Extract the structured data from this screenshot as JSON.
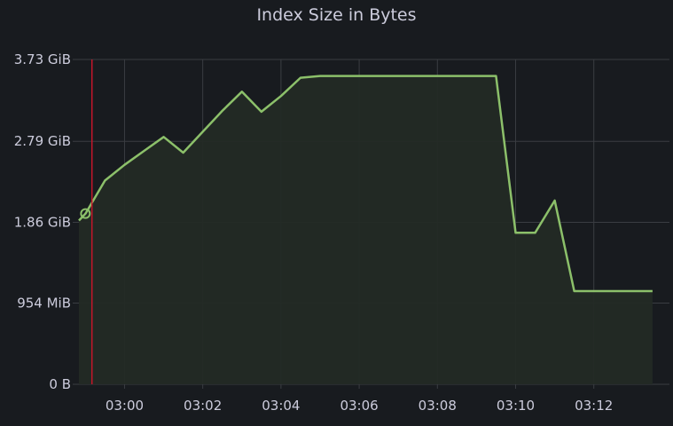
{
  "panel": {
    "title": "Index Size in Bytes"
  },
  "colors": {
    "background": "#181b1f",
    "grid": "#3a3d42",
    "series_line": "#8cc06a",
    "series_fill": "#232a25",
    "annotation": "#c4162a",
    "text": "#ccccdc"
  },
  "chart_data": {
    "type": "area",
    "title": "Index Size in Bytes",
    "xlabel": "",
    "ylabel": "",
    "grid": true,
    "x_ticks": [
      "03:00",
      "03:02",
      "03:04",
      "03:06",
      "03:08",
      "03:10",
      "03:12"
    ],
    "y_ticks": [
      "0 B",
      "954 MiB",
      "1.86 GiB",
      "2.79 GiB",
      "3.73 GiB"
    ],
    "y_tick_values": [
      0,
      0.932,
      1.86,
      2.79,
      3.73
    ],
    "y_unit": "GiB",
    "xlim": [
      "02:58:50",
      "03:13:37"
    ],
    "ylim": [
      0,
      3.73
    ],
    "annotation": {
      "type": "vertical-line",
      "x": "02:59:10"
    },
    "series": [
      {
        "x": [
          "02:58:50",
          "02:59:00",
          "02:59:30",
          "03:00:00",
          "03:00:30",
          "03:01:00",
          "03:01:30",
          "03:02:00",
          "03:02:30",
          "03:03:00",
          "03:03:30",
          "03:04:00",
          "03:04:30",
          "03:05:00",
          "03:05:30",
          "03:06:00",
          "03:06:30",
          "03:07:00",
          "03:07:30",
          "03:08:00",
          "03:08:30",
          "03:09:00",
          "03:09:30",
          "03:10:00",
          "03:10:30",
          "03:11:00",
          "03:11:30",
          "03:12:00",
          "03:12:30",
          "03:13:00",
          "03:13:30"
        ],
        "values": [
          1.88,
          1.96,
          2.34,
          2.52,
          2.68,
          2.84,
          2.66,
          2.9,
          3.14,
          3.36,
          3.13,
          3.31,
          3.52,
          3.54,
          3.54,
          3.54,
          3.54,
          3.54,
          3.54,
          3.54,
          3.54,
          3.54,
          3.54,
          1.74,
          1.74,
          2.11,
          1.07,
          1.07,
          1.07,
          1.07,
          1.07
        ]
      }
    ]
  }
}
